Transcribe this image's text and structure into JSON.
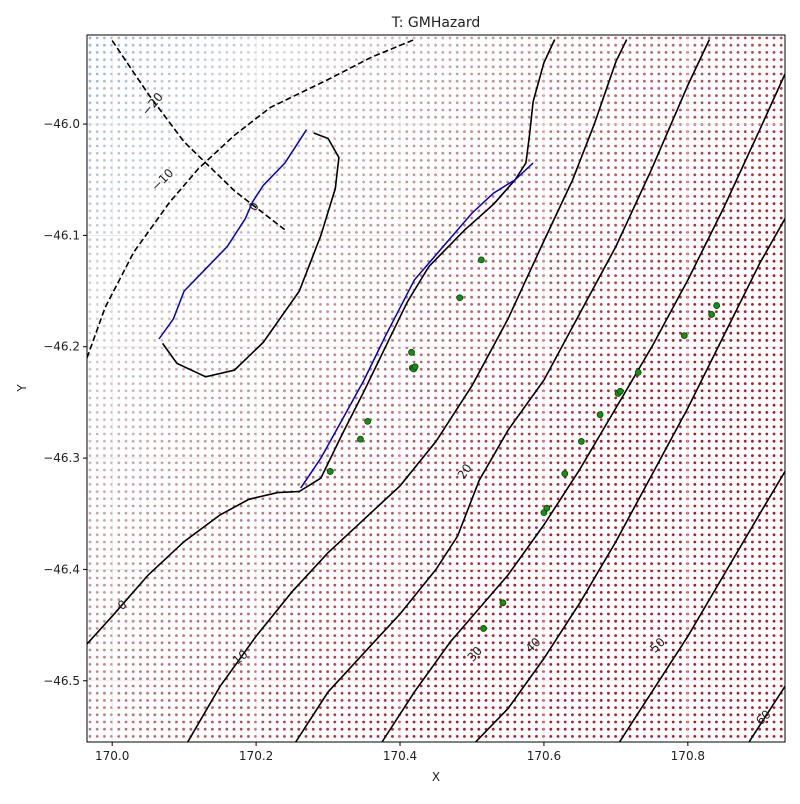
{
  "chart_data": {
    "type": "contour",
    "title": "T: GMHazard",
    "xlabel": "X",
    "ylabel": "Y",
    "xlim": [
      169.965,
      170.935
    ],
    "ylim": [
      -46.555,
      -45.92
    ],
    "xticks": [
      170.0,
      170.2,
      170.4,
      170.6,
      170.8
    ],
    "xtick_labels": [
      "170.0",
      "170.2",
      "170.4",
      "170.6",
      "170.8"
    ],
    "yticks": [
      -46.0,
      -46.1,
      -46.2,
      -46.3,
      -46.4,
      -46.5
    ],
    "ytick_labels": [
      "−46.0",
      "−46.1",
      "−46.2",
      "−46.3",
      "−46.4",
      "−46.5"
    ],
    "grid": true,
    "colormap": "coolwarm",
    "colors": {
      "negative": "#7aa6ee",
      "neutral": "#d6d6d6",
      "positive": "#b2182b",
      "contour": "#000000",
      "fault_trace": "#0000cc",
      "sites": "#1a8c1a",
      "sites_edge": "#004d00"
    },
    "contour_levels": [
      {
        "level": -20,
        "label": "−20",
        "style": "dashed",
        "points": [
          [
            170.0,
            -45.925
          ],
          [
            170.05,
            -45.973
          ],
          [
            170.1,
            -46.016
          ],
          [
            170.17,
            -46.06
          ],
          [
            170.24,
            -46.095
          ]
        ]
      },
      {
        "level": -10,
        "label": "−10",
        "style": "dashed",
        "points": [
          [
            169.965,
            -46.21
          ],
          [
            169.99,
            -46.165
          ],
          [
            170.03,
            -46.115
          ],
          [
            170.08,
            -46.07
          ],
          [
            170.12,
            -46.04
          ],
          [
            170.17,
            -46.01
          ],
          [
            170.22,
            -45.985
          ],
          [
            170.3,
            -45.96
          ],
          [
            170.36,
            -45.94
          ],
          [
            170.42,
            -45.924
          ]
        ]
      },
      {
        "level": 0,
        "label": "0",
        "style": "solid",
        "points": [
          [
            170.07,
            -46.197
          ],
          [
            170.09,
            -46.215
          ],
          [
            170.13,
            -46.227
          ],
          [
            170.17,
            -46.221
          ],
          [
            170.21,
            -46.196
          ],
          [
            170.26,
            -46.15
          ],
          [
            170.29,
            -46.1
          ],
          [
            170.31,
            -46.058
          ],
          [
            170.315,
            -46.03
          ],
          [
            170.3,
            -46.013
          ],
          [
            170.28,
            -46.008
          ]
        ]
      },
      {
        "level": 0,
        "label": "0",
        "style": "solid",
        "points": [
          [
            169.965,
            -46.467
          ],
          [
            170.0,
            -46.442
          ],
          [
            170.05,
            -46.405
          ],
          [
            170.1,
            -46.375
          ],
          [
            170.15,
            -46.351
          ],
          [
            170.19,
            -46.337
          ],
          [
            170.23,
            -46.331
          ],
          [
            170.26,
            -46.33
          ],
          [
            170.29,
            -46.318
          ],
          [
            170.32,
            -46.278
          ],
          [
            170.35,
            -46.24
          ],
          [
            170.38,
            -46.2
          ],
          [
            170.41,
            -46.16
          ],
          [
            170.44,
            -46.128
          ],
          [
            170.49,
            -46.095
          ],
          [
            170.53,
            -46.072
          ],
          [
            170.56,
            -46.05
          ],
          [
            170.575,
            -46.035
          ],
          [
            170.58,
            -46.01
          ],
          [
            170.585,
            -45.98
          ],
          [
            170.6,
            -45.945
          ],
          [
            170.615,
            -45.924
          ]
        ]
      },
      {
        "level": 10,
        "label": "10",
        "style": "solid",
        "points": [
          [
            170.105,
            -46.555
          ],
          [
            170.15,
            -46.505
          ],
          [
            170.2,
            -46.46
          ],
          [
            170.25,
            -46.42
          ],
          [
            170.3,
            -46.385
          ],
          [
            170.35,
            -46.355
          ],
          [
            170.4,
            -46.325
          ],
          [
            170.45,
            -46.285
          ],
          [
            170.5,
            -46.235
          ],
          [
            170.55,
            -46.175
          ],
          [
            170.6,
            -46.105
          ],
          [
            170.64,
            -46.05
          ],
          [
            170.67,
            -46.0
          ],
          [
            170.7,
            -45.944
          ],
          [
            170.715,
            -45.924
          ]
        ]
      },
      {
        "level": 20,
        "label": "20",
        "style": "solid",
        "points": [
          [
            170.255,
            -46.555
          ],
          [
            170.3,
            -46.51
          ],
          [
            170.35,
            -46.475
          ],
          [
            170.4,
            -46.44
          ],
          [
            170.45,
            -46.4
          ],
          [
            170.48,
            -46.37
          ],
          [
            170.51,
            -46.32
          ],
          [
            170.55,
            -46.275
          ],
          [
            170.6,
            -46.23
          ],
          [
            170.65,
            -46.17
          ],
          [
            170.7,
            -46.11
          ],
          [
            170.75,
            -46.04
          ],
          [
            170.8,
            -45.965
          ],
          [
            170.83,
            -45.924
          ]
        ]
      },
      {
        "level": 30,
        "label": "30",
        "style": "solid",
        "points": [
          [
            170.375,
            -46.555
          ],
          [
            170.42,
            -46.51
          ],
          [
            170.47,
            -46.465
          ],
          [
            170.51,
            -46.435
          ],
          [
            170.55,
            -46.405
          ],
          [
            170.6,
            -46.36
          ],
          [
            170.65,
            -46.31
          ],
          [
            170.7,
            -46.255
          ],
          [
            170.75,
            -46.2
          ],
          [
            170.8,
            -46.14
          ],
          [
            170.85,
            -46.075
          ],
          [
            170.9,
            -46.005
          ],
          [
            170.935,
            -45.955
          ]
        ]
      },
      {
        "level": 40,
        "label": "40",
        "style": "solid",
        "points": [
          [
            170.505,
            -46.555
          ],
          [
            170.55,
            -46.525
          ],
          [
            170.6,
            -46.48
          ],
          [
            170.65,
            -46.43
          ],
          [
            170.7,
            -46.375
          ],
          [
            170.75,
            -46.315
          ],
          [
            170.8,
            -46.255
          ],
          [
            170.85,
            -46.19
          ],
          [
            170.9,
            -46.125
          ],
          [
            170.935,
            -46.085
          ]
        ]
      },
      {
        "level": 50,
        "label": "50",
        "style": "solid",
        "points": [
          [
            170.705,
            -46.555
          ],
          [
            170.75,
            -46.51
          ],
          [
            170.8,
            -46.46
          ],
          [
            170.85,
            -46.405
          ],
          [
            170.9,
            -46.35
          ],
          [
            170.935,
            -46.312
          ]
        ]
      },
      {
        "level": 60,
        "label": "60",
        "style": "solid",
        "points": [
          [
            170.885,
            -46.555
          ],
          [
            170.91,
            -46.53
          ],
          [
            170.935,
            -46.505
          ]
        ]
      }
    ],
    "contour_labels": [
      {
        "text": "−20",
        "x": 170.056,
        "y": -45.982,
        "rotation": -50
      },
      {
        "text": "−10",
        "x": 170.07,
        "y": -46.05,
        "rotation": -45
      },
      {
        "text": "0",
        "x": 170.197,
        "y": -46.074,
        "rotation": -58
      },
      {
        "text": "0",
        "x": 170.014,
        "y": -46.432,
        "rotation": -35
      },
      {
        "text": "10",
        "x": 170.178,
        "y": -46.479,
        "rotation": -40
      },
      {
        "text": "20",
        "x": 170.49,
        "y": -46.312,
        "rotation": -55
      },
      {
        "text": "30",
        "x": 170.504,
        "y": -46.476,
        "rotation": -48
      },
      {
        "text": "40",
        "x": 170.585,
        "y": -46.468,
        "rotation": -45
      },
      {
        "text": "50",
        "x": 170.758,
        "y": -46.468,
        "rotation": -45
      },
      {
        "text": "60",
        "x": 170.905,
        "y": -46.533,
        "rotation": -45
      }
    ],
    "fault_traces": [
      {
        "points": [
          [
            170.065,
            -46.193
          ],
          [
            170.085,
            -46.175
          ],
          [
            170.1,
            -46.15
          ],
          [
            170.13,
            -46.13
          ],
          [
            170.16,
            -46.11
          ],
          [
            170.185,
            -46.085
          ],
          [
            170.195,
            -46.07
          ],
          [
            170.21,
            -46.055
          ],
          [
            170.24,
            -46.035
          ],
          [
            170.26,
            -46.015
          ],
          [
            170.27,
            -46.005
          ]
        ]
      },
      {
        "points": [
          [
            170.262,
            -46.327
          ],
          [
            170.29,
            -46.3
          ],
          [
            170.32,
            -46.265
          ],
          [
            170.35,
            -46.23
          ],
          [
            170.38,
            -46.19
          ],
          [
            170.4,
            -46.165
          ],
          [
            170.42,
            -46.14
          ],
          [
            170.46,
            -46.11
          ],
          [
            170.5,
            -46.08
          ],
          [
            170.53,
            -46.062
          ],
          [
            170.56,
            -46.05
          ],
          [
            170.585,
            -46.035
          ]
        ]
      }
    ],
    "sites": [
      [
        170.513,
        -46.122
      ],
      [
        170.483,
        -46.156
      ],
      [
        170.416,
        -46.205
      ],
      [
        170.417,
        -46.219
      ],
      [
        170.419,
        -46.22
      ],
      [
        170.421,
        -46.218
      ],
      [
        170.355,
        -46.267
      ],
      [
        170.345,
        -46.283
      ],
      [
        170.303,
        -46.312
      ],
      [
        170.543,
        -46.43
      ],
      [
        170.516,
        -46.453
      ],
      [
        170.6,
        -46.349
      ],
      [
        170.604,
        -46.345
      ],
      [
        170.629,
        -46.314
      ],
      [
        170.652,
        -46.285
      ],
      [
        170.678,
        -46.261
      ],
      [
        170.703,
        -46.242
      ],
      [
        170.706,
        -46.24
      ],
      [
        170.731,
        -46.223
      ],
      [
        170.795,
        -46.19
      ],
      [
        170.833,
        -46.171
      ],
      [
        170.84,
        -46.163
      ]
    ]
  }
}
